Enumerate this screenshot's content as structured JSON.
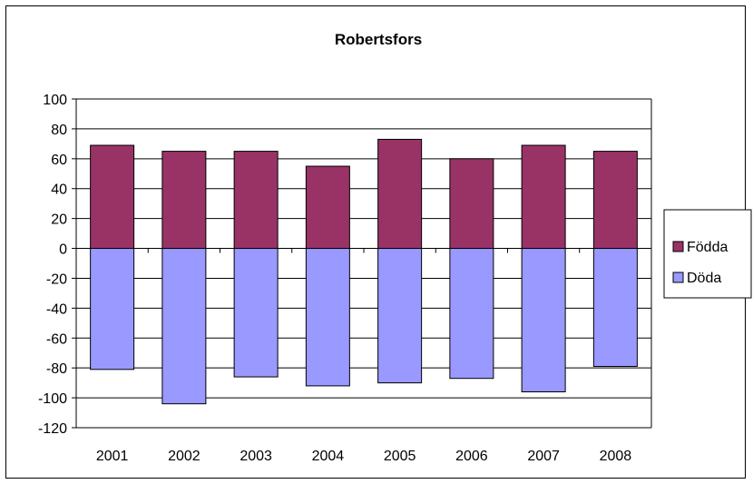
{
  "chart_data": {
    "type": "bar",
    "stacked": true,
    "title": "Robertsfors",
    "categories": [
      "2001",
      "2002",
      "2003",
      "2004",
      "2005",
      "2006",
      "2007",
      "2008"
    ],
    "series": [
      {
        "name": "Födda",
        "values": [
          69,
          65,
          65,
          55,
          73,
          60,
          69,
          65
        ],
        "color": "#993366"
      },
      {
        "name": "Döda",
        "values": [
          -81,
          -104,
          -86,
          -92,
          -90,
          -87,
          -96,
          -79
        ],
        "color": "#9999ff"
      }
    ],
    "ylim": [
      -120,
      100
    ],
    "yticks": [
      100,
      80,
      60,
      40,
      20,
      0,
      -20,
      -40,
      -60,
      -80,
      -100,
      -120
    ],
    "grid": true,
    "legend_position": "right"
  }
}
